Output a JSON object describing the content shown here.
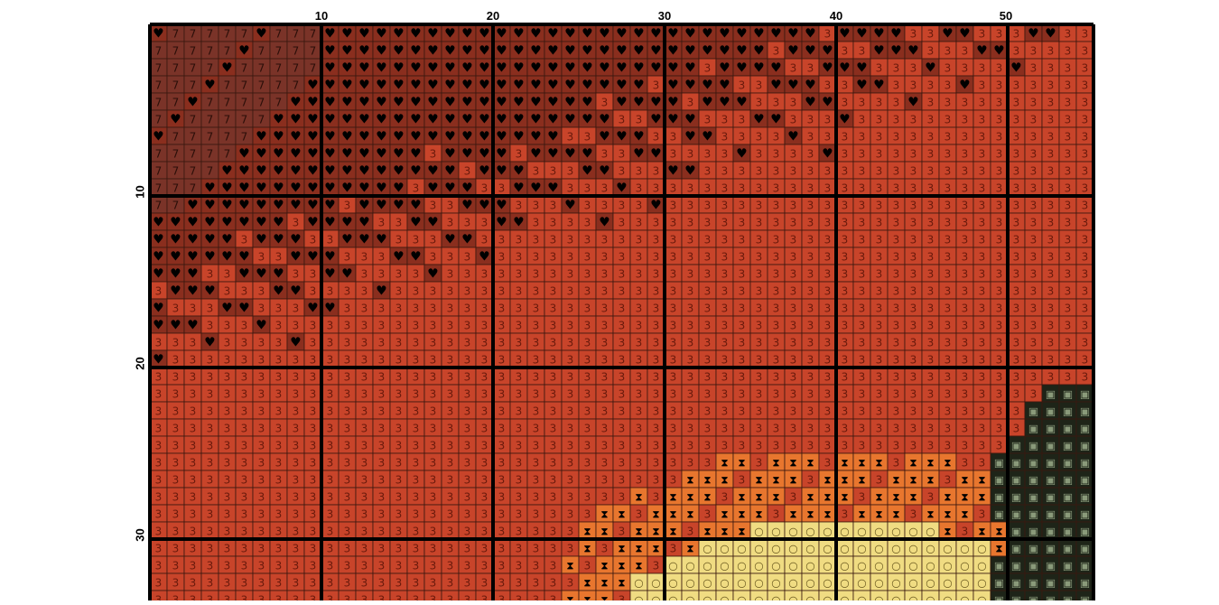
{
  "pattern": {
    "columns": 55,
    "rows": 34,
    "column_labels": [
      "10",
      "20",
      "30",
      "40",
      "50"
    ],
    "row_labels": [
      "10",
      "20",
      "30"
    ],
    "palette": {
      "A": {
        "name": "heart",
        "symbol": "♥",
        "fill": "#8a2e1e",
        "ink": "#000000"
      },
      "B": {
        "name": "seven",
        "symbol": "7",
        "fill": "#7a3328",
        "ink": "#2a0e08"
      },
      "C": {
        "name": "three",
        "symbol": "3",
        "fill": "#c8442a",
        "ink": "#6a1a0c"
      },
      "D": {
        "name": "hourglass",
        "symbol": "⧗",
        "fill": "#e8762e",
        "ink": "#000000"
      },
      "E": {
        "name": "circle",
        "symbol": "○",
        "fill": "#f0dc82",
        "ink": "#6b5a20"
      },
      "F": {
        "name": "square",
        "symbol": "▣",
        "fill": "#1e2418",
        "ink": "#8a9a7a"
      }
    },
    "grid_colors": {
      "thin": "#3a1810",
      "thick": "#000000"
    }
  }
}
